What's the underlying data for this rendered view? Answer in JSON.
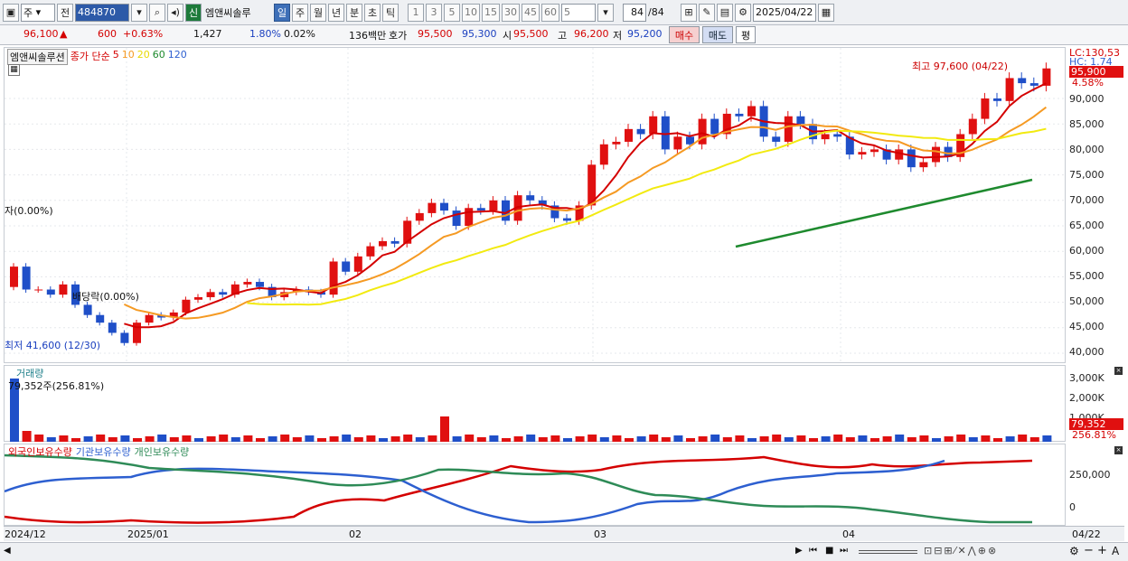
{
  "toolbar": {
    "market": "주",
    "prev": "전",
    "code": "484870",
    "badge": "신",
    "name": "엠앤씨솔루",
    "periods": [
      "일",
      "주",
      "월",
      "년",
      "분",
      "초",
      "틱"
    ],
    "minutes": [
      "1",
      "3",
      "5",
      "10",
      "15",
      "30",
      "45",
      "60"
    ],
    "custom": "5",
    "count": "84",
    "count_total": "/84",
    "date": "2025/04/22"
  },
  "quote": {
    "price": "96,100",
    "arrow": "▲",
    "change": "600",
    "change_pct": "+0.63%",
    "volume": "1,427",
    "vol_pct": "1.80%",
    "turnover_pct": "0.02%",
    "amount": "136백만",
    "hoga_label": "호가",
    "ask": "95,500",
    "bid": "95,300",
    "open_label": "시",
    "open": "95,500",
    "high_label": "고",
    "high": "96,200",
    "low_label": "저",
    "low": "95,200",
    "buy": "매수",
    "sell": "매도",
    "eval": "평"
  },
  "price_panel": {
    "title": "엠앤씨솔루션",
    "ma_label": "종가 단순",
    "ma_periods": [
      "5",
      "10",
      "20",
      "60",
      "120"
    ],
    "ma_colors": [
      "#d40000",
      "#f59a23",
      "#e8d800",
      "#1e8a2e",
      "#2d5fd0"
    ],
    "y_ticks": [
      "90,000",
      "85,000",
      "80,000",
      "75,000",
      "70,000",
      "65,000",
      "60,000",
      "55,000",
      "50,000",
      "45,000",
      "40,000"
    ],
    "lc": "LC:130,53",
    "hc": "HC: 1.74",
    "last_price": "95,900",
    "last_pct": "4.58%",
    "high_note": "최고 97,600 (04/22)",
    "low_note": "최저 41,600 (12/30)",
    "event1": "자(0.00%)",
    "event2": "배당락(0.00%)"
  },
  "volume_panel": {
    "title": "거래량",
    "peak": "79,352주(256.81%)",
    "y_ticks": [
      "3,000K",
      "2,000K",
      "1,000K"
    ],
    "last": "79,352",
    "last_pct": "256.81%"
  },
  "holding_panel": {
    "series": [
      {
        "name": "외국인보유수량",
        "color": "#d40000"
      },
      {
        "name": "기관보유수량",
        "color": "#2d5fd0"
      },
      {
        "name": "개인보유수량",
        "color": "#2e8b57"
      }
    ],
    "y_ticks": [
      "250,000",
      "0"
    ]
  },
  "xaxis": {
    "labels": [
      "2024/12",
      "2025/01",
      "02",
      "03",
      "04"
    ],
    "last": "04/22"
  }
}
